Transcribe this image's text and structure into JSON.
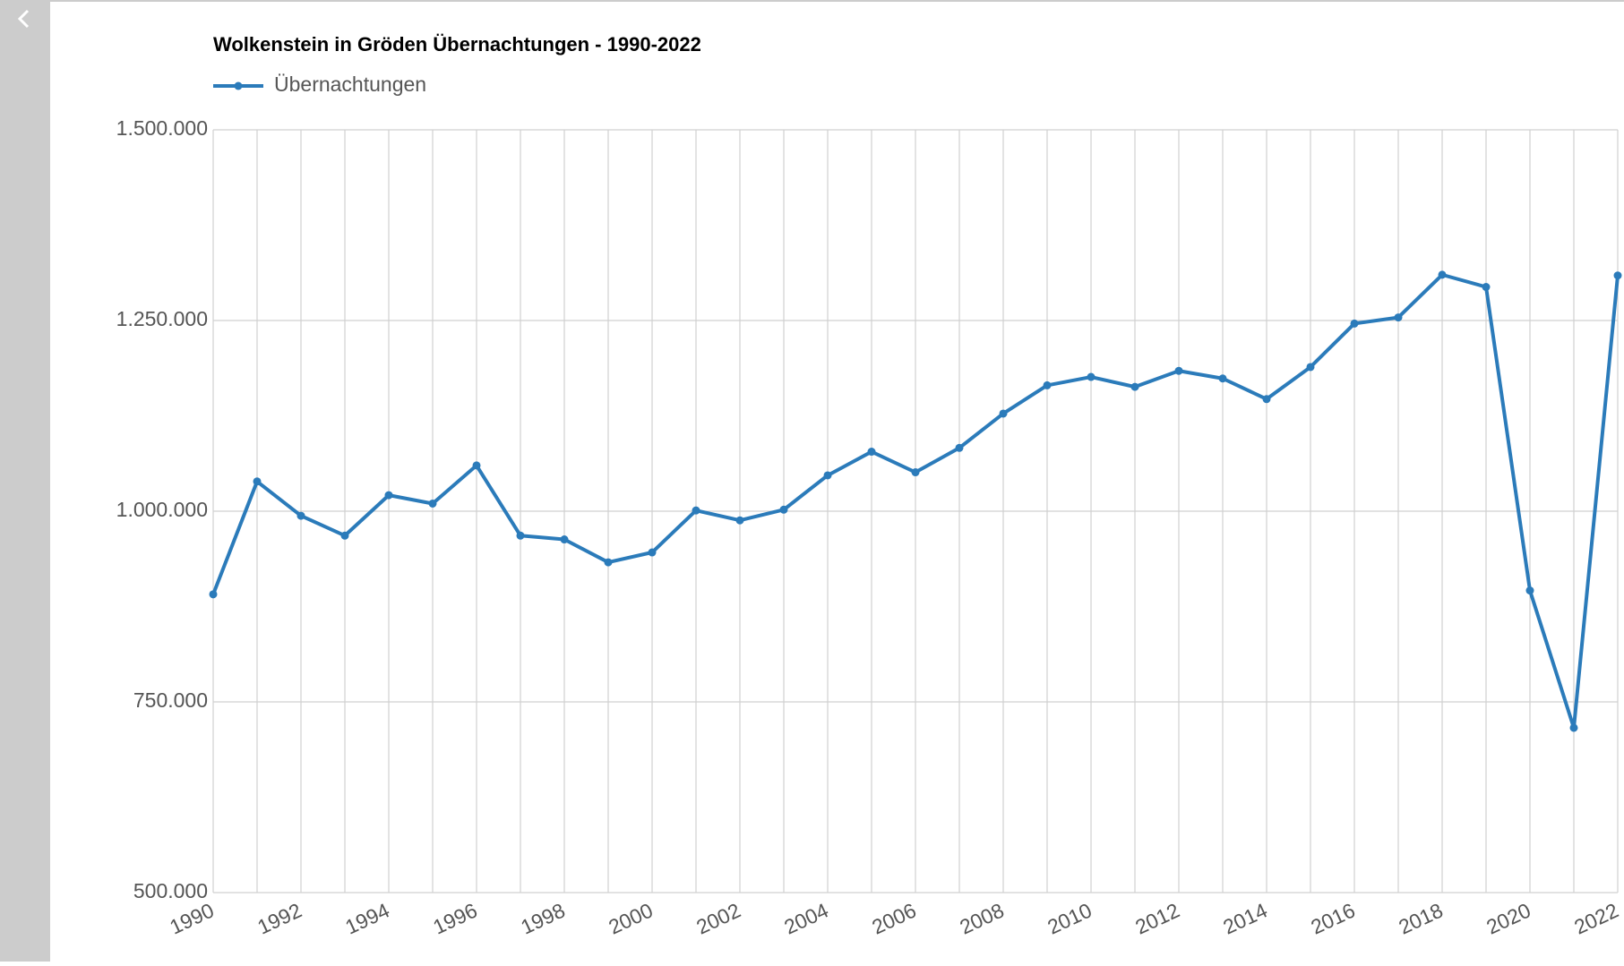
{
  "chart_data": {
    "type": "line",
    "title": "Wolkenstein in Gröden Übernachtungen - 1990-2022",
    "x": [
      1990,
      1991,
      1992,
      1993,
      1994,
      1995,
      1996,
      1997,
      1998,
      1999,
      2000,
      2001,
      2002,
      2003,
      2004,
      2005,
      2006,
      2007,
      2008,
      2009,
      2010,
      2011,
      2012,
      2013,
      2014,
      2015,
      2016,
      2017,
      2018,
      2019,
      2020,
      2021,
      2022
    ],
    "series": [
      {
        "name": "Übernachtungen",
        "color": "#2b7bba",
        "values": [
          891000,
          1039000,
          994000,
          968000,
          1021000,
          1010000,
          1060000,
          968000,
          963000,
          933000,
          946000,
          1001000,
          988000,
          1002000,
          1047000,
          1078000,
          1051000,
          1083000,
          1128000,
          1165000,
          1176000,
          1163000,
          1184000,
          1174000,
          1147000,
          1189000,
          1246000,
          1254000,
          1310000,
          1294000,
          896000,
          716000,
          1309000
        ]
      }
    ],
    "xlim": [
      1990,
      2022
    ],
    "xticks": [
      1990,
      1992,
      1994,
      1996,
      1998,
      2000,
      2002,
      2004,
      2006,
      2008,
      2010,
      2012,
      2014,
      2016,
      2018,
      2020,
      2022
    ],
    "ylim": [
      500000,
      1500000
    ],
    "yticks": [
      {
        "value": 500000,
        "label": "500.000"
      },
      {
        "value": 750000,
        "label": "750.000"
      },
      {
        "value": 1000000,
        "label": "1.000.000"
      },
      {
        "value": 1250000,
        "label": "1.250.000"
      },
      {
        "value": 1500000,
        "label": "1.500.000"
      }
    ],
    "grid": true
  }
}
